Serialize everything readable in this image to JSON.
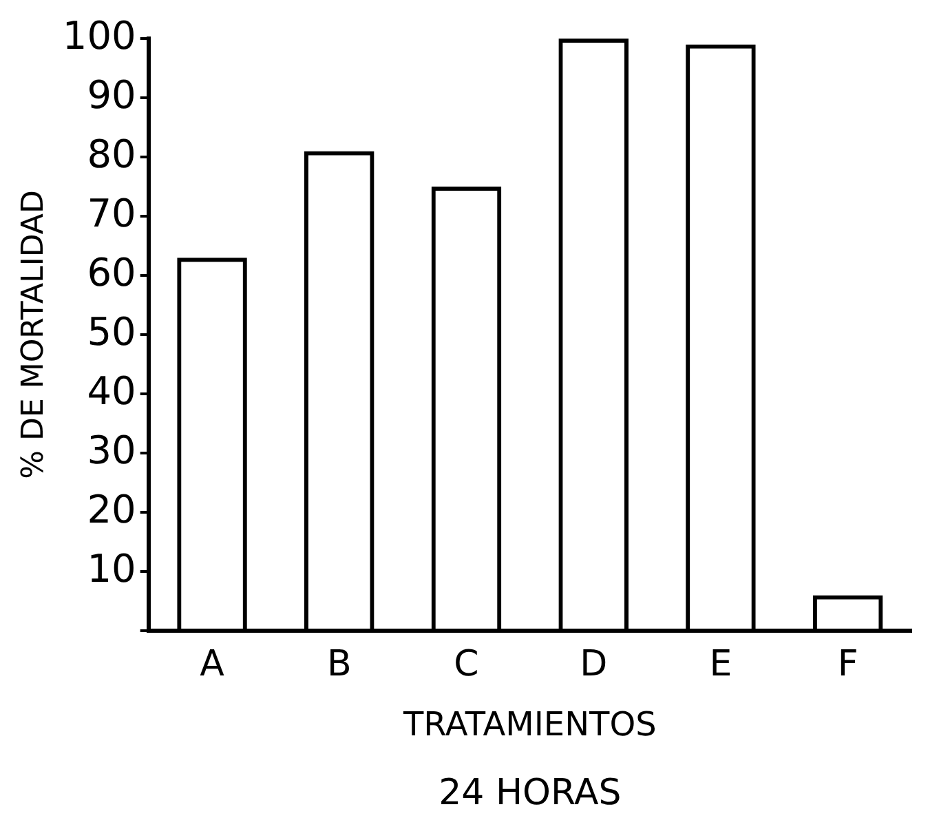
{
  "chart_data": {
    "type": "bar",
    "categories": [
      "A",
      "B",
      "C",
      "D",
      "E",
      "F"
    ],
    "values": [
      63,
      81,
      75,
      100,
      99,
      6
    ],
    "color": "#000000",
    "ylabel": "% DE MORTALIDAD",
    "xlabel": "TRATAMIENTOS",
    "annotations": [
      "24 HORAS"
    ],
    "ylim": [
      0,
      100
    ],
    "yticks": [
      {
        "value": 0,
        "label": null
      },
      10,
      20,
      30,
      40,
      50,
      60,
      70,
      80,
      90,
      100
    ],
    "grid": false,
    "legend": false
  }
}
